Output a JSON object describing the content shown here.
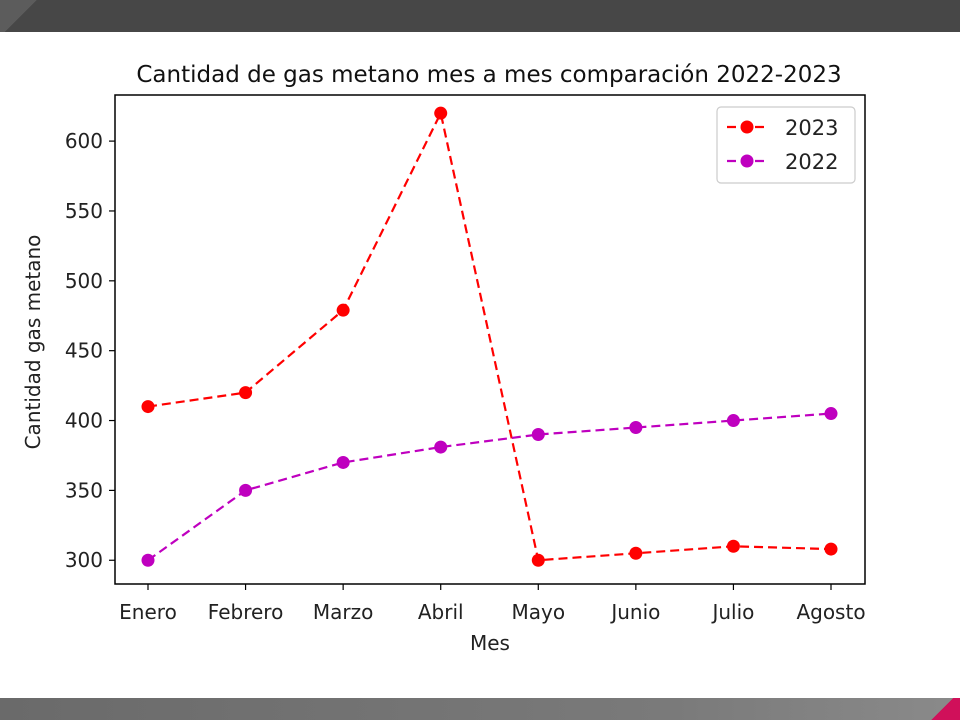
{
  "colors": {
    "series_2023": "#ff0000",
    "series_2022": "#bf00bf",
    "top_bar": "#474747",
    "bottom_bar": "#7a7a7a",
    "accent": "#d0105a"
  },
  "chart_data": {
    "type": "line",
    "title": "Cantidad de gas metano mes a mes comparación 2022-2023",
    "xlabel": "Mes",
    "ylabel": "Cantidad gas metano",
    "categories": [
      "Enero",
      "Febrero",
      "Marzo",
      "Abril",
      "Mayo",
      "Junio",
      "Julio",
      "Agosto"
    ],
    "yticks": [
      300,
      350,
      400,
      450,
      500,
      550,
      600
    ],
    "ylim": [
      283,
      633
    ],
    "grid": false,
    "legend": "top-right",
    "series": [
      {
        "name": "2023",
        "color": "#ff0000",
        "line_style": "dashed",
        "marker": "circle",
        "values": [
          410,
          420,
          479,
          620,
          300,
          305,
          310,
          308
        ]
      },
      {
        "name": "2022",
        "color": "#bf00bf",
        "line_style": "dashed",
        "marker": "circle",
        "values": [
          300,
          350,
          370,
          381,
          390,
          395,
          400,
          405
        ]
      }
    ]
  }
}
